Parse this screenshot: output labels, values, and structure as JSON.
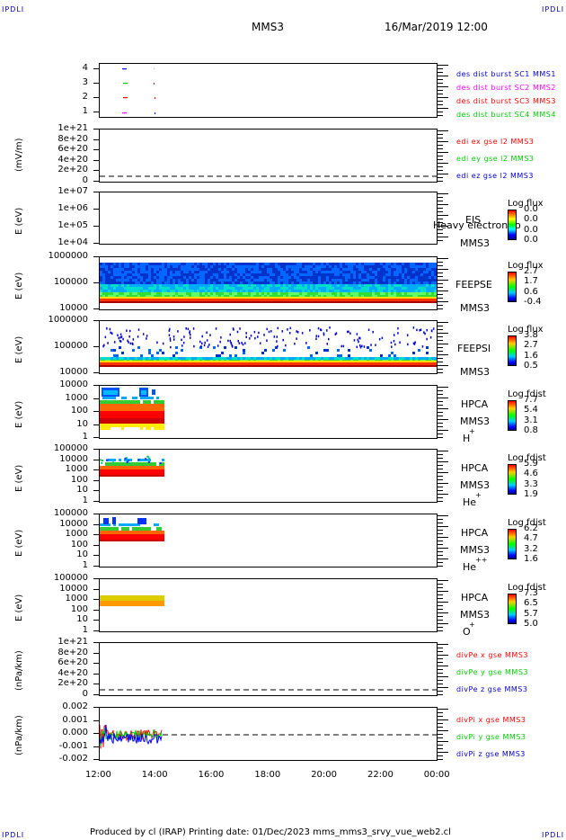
{
  "corners": {
    "tl": "IPDLI",
    "tr": "IPDLI",
    "bl": "IPDLI",
    "br": "IPDLI"
  },
  "header": {
    "spacecraft": "MMS3",
    "datetime": "16/Mar/2019 12:00"
  },
  "colors": {
    "mms1": "#0000ff",
    "mms2": "#ff00ff",
    "mms3": "#ff0000",
    "mms4": "#00cc00"
  },
  "panels": {
    "p1": {
      "yticks": [
        "4",
        "3",
        "2",
        "1"
      ],
      "legend": [
        {
          "text": "des dist burst SC1 MMS1",
          "color": "#0000cc"
        },
        {
          "text": "des dist burst SC2 MMS2",
          "color": "#ff00ff"
        },
        {
          "text": "des dist burst SC3 MMS3",
          "color": "#ff0000"
        },
        {
          "text": "des dist burst SC4 MMS4",
          "color": "#00cc00"
        }
      ]
    },
    "p2": {
      "ylabel": "(mV/m)",
      "yticks": [
        "1e+21",
        "8e+20",
        "6e+20",
        "4e+20",
        "2e+20",
        "0"
      ],
      "legend": [
        {
          "text": "edi ex gse l2 MMS3",
          "color": "#ff0000"
        },
        {
          "text": "edi ey gse l2 MMS3",
          "color": "#00cc00"
        },
        {
          "text": "edi ez gse l2 MMS3",
          "color": "#0000cc"
        }
      ]
    },
    "p3": {
      "ylabel": "E (eV)",
      "yticks": [
        "1e+07",
        "1e+06",
        "1e+05",
        "1e+04"
      ],
      "inst": "EIS",
      "overlay": "Heavy electron to",
      "sc": "MMS3",
      "cbtitle": "Log flux",
      "cbticks": [
        "0.0",
        "0.0",
        "0.0",
        "0.0"
      ]
    },
    "p4": {
      "ylabel": "E (eV)",
      "yticks": [
        "1000000",
        "100000",
        "10000"
      ],
      "inst": "FEEPSE",
      "sc": "MMS3",
      "cbtitle": "Log flux",
      "cbticks": [
        "2.7",
        "1.7",
        "0.6",
        "-0.4"
      ]
    },
    "p5": {
      "ylabel": "E (eV)",
      "yticks": [
        "1000000",
        "100000",
        "10000"
      ],
      "inst": "FEEPSI",
      "sc": "MMS3",
      "cbtitle": "Log flux",
      "cbticks": [
        "3.8",
        "2.7",
        "1.6",
        "0.5"
      ]
    },
    "p6": {
      "ylabel": "E (eV)",
      "yticks": [
        "10000",
        "1000",
        "100",
        "10",
        "1"
      ],
      "inst": "HPCA",
      "sc": "MMS3",
      "species": "H",
      "sup": "+",
      "cbtitle": "Log fdist",
      "cbticks": [
        "7.7",
        "5.4",
        "3.1",
        "0.8"
      ]
    },
    "p7": {
      "ylabel": "E (eV)",
      "yticks": [
        "100000",
        "10000",
        "1000",
        "100",
        "10",
        "1"
      ],
      "inst": "HPCA",
      "sc": "MMS3",
      "species": "He",
      "sup": "+",
      "cbtitle": "Log fdist",
      "cbticks": [
        "5.9",
        "4.6",
        "3.3",
        "1.9"
      ]
    },
    "p8": {
      "ylabel": "E (eV)",
      "yticks": [
        "100000",
        "10000",
        "1000",
        "100",
        "10",
        "1"
      ],
      "inst": "HPCA",
      "sc": "MMS3",
      "species": "He",
      "sup": "++",
      "cbtitle": "Log fdist",
      "cbticks": [
        "6.2",
        "4.7",
        "3.2",
        "1.6"
      ]
    },
    "p9": {
      "ylabel": "E (eV)",
      "yticks": [
        "100000",
        "10000",
        "1000",
        "100",
        "10",
        "1"
      ],
      "inst": "HPCA",
      "sc": "MMS3",
      "species": "O",
      "sup": "+",
      "cbtitle": "Log fdist",
      "cbticks": [
        "7.3",
        "6.5",
        "5.7",
        "5.0"
      ]
    },
    "p10": {
      "ylabel": "(nPa/km)",
      "yticks": [
        "1e+21",
        "8e+20",
        "6e+20",
        "4e+20",
        "2e+20",
        "0"
      ],
      "legend": [
        {
          "text": "divPe x gse MMS3",
          "color": "#ff0000"
        },
        {
          "text": "divPe y gse MMS3",
          "color": "#00cc00"
        },
        {
          "text": "divPe z gse MMS3",
          "color": "#0000cc"
        }
      ]
    },
    "p11": {
      "ylabel": "(nPa/km)",
      "yticks": [
        "0.002",
        "0.001",
        "0.000",
        "-0.001",
        "-0.002"
      ],
      "legend": [
        {
          "text": "divPi x gse MMS3",
          "color": "#ff0000"
        },
        {
          "text": "divPi y gse MMS3",
          "color": "#00cc00"
        },
        {
          "text": "divPi z gse MMS3",
          "color": "#0000cc"
        }
      ]
    }
  },
  "xaxis": {
    "ticks": [
      "12:00",
      "14:00",
      "16:00",
      "18:00",
      "20:00",
      "22:00",
      "00:00"
    ]
  },
  "footer": "Produced by cl (IRAP)   Printing date: 01/Dec/2023   mms_mms3_srvy_vue_web2.cl",
  "chart_data": {
    "type": "heatmap",
    "title": "MMS3",
    "x_range": [
      "12:00",
      "00:00"
    ],
    "spectrogram_panels": [
      {
        "inst": "FEEPSE",
        "ylim": [
          10000,
          1000000
        ],
        "cbar": [
          -0.4,
          2.7
        ],
        "data_extent": [
          "12:00",
          "00:00"
        ]
      },
      {
        "inst": "FEEPSI",
        "ylim": [
          10000,
          1000000
        ],
        "cbar": [
          0.5,
          3.8
        ],
        "data_extent": [
          "12:00",
          "00:00"
        ]
      },
      {
        "inst": "HPCA H+",
        "ylim": [
          1,
          10000
        ],
        "cbar": [
          0.8,
          7.7
        ],
        "data_extent": [
          "12:00",
          "14:10"
        ]
      },
      {
        "inst": "HPCA He+",
        "ylim": [
          1,
          100000
        ],
        "cbar": [
          1.9,
          5.9
        ],
        "data_extent": [
          "12:00",
          "14:10"
        ]
      },
      {
        "inst": "HPCA He++",
        "ylim": [
          1,
          100000
        ],
        "cbar": [
          1.6,
          6.2
        ],
        "data_extent": [
          "12:00",
          "14:10"
        ]
      },
      {
        "inst": "HPCA O+",
        "ylim": [
          1,
          100000
        ],
        "cbar": [
          5.0,
          7.3
        ],
        "data_extent": [
          "12:00",
          "14:10"
        ]
      }
    ],
    "line_panels": [
      {
        "name": "divPi",
        "ylim": [
          -0.002,
          0.002
        ],
        "series": [
          "divPi x gse MMS3",
          "divPi y gse MMS3",
          "divPi z gse MMS3"
        ],
        "data_extent": [
          "12:00",
          "14:10"
        ]
      }
    ]
  }
}
